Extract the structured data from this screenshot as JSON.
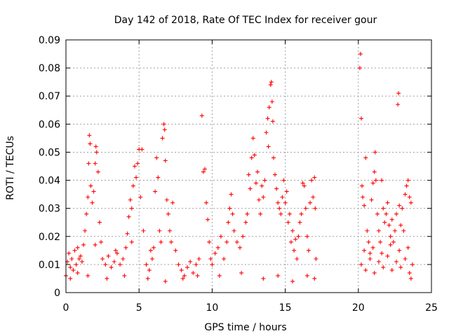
{
  "chart_data": {
    "type": "scatter",
    "title": "Day 142 of 2018, Rate Of TEC Index for receiver gour",
    "xlabel": "GPS time / hours",
    "ylabel": "ROTI / TECUs",
    "xlim": [
      0,
      25
    ],
    "ylim": [
      0,
      0.09
    ],
    "x_ticks": [
      0,
      5,
      10,
      15,
      20,
      25
    ],
    "x_tick_labels": [
      "0",
      "5",
      "10",
      "15",
      "20",
      "25"
    ],
    "y_ticks": [
      0,
      0.01,
      0.02,
      0.03,
      0.04,
      0.05,
      0.06,
      0.07,
      0.08,
      0.09
    ],
    "y_tick_labels": [
      "0",
      "0.01",
      "0.02",
      "0.03",
      "0.04",
      "0.05",
      "0.06",
      "0.07",
      "0.08",
      "0.09"
    ],
    "grid": true,
    "marker": "+",
    "color": "#ff0000",
    "series": [
      {
        "name": "ROTI",
        "points": [
          [
            0.0,
            0.006
          ],
          [
            0.1,
            0.011
          ],
          [
            0.2,
            0.014
          ],
          [
            0.3,
            0.009
          ],
          [
            0.4,
            0.012
          ],
          [
            0.5,
            0.008
          ],
          [
            0.6,
            0.015
          ],
          [
            0.7,
            0.01
          ],
          [
            0.8,
            0.007
          ],
          [
            0.9,
            0.012
          ],
          [
            1.0,
            0.013
          ],
          [
            1.1,
            0.011
          ],
          [
            1.2,
            0.017
          ],
          [
            1.3,
            0.022
          ],
          [
            1.4,
            0.028
          ],
          [
            1.5,
            0.034
          ],
          [
            1.55,
            0.046
          ],
          [
            1.6,
            0.056
          ],
          [
            1.65,
            0.053
          ],
          [
            1.7,
            0.038
          ],
          [
            1.8,
            0.032
          ],
          [
            1.9,
            0.036
          ],
          [
            2.0,
            0.046
          ],
          [
            2.05,
            0.052
          ],
          [
            2.1,
            0.05
          ],
          [
            2.2,
            0.043
          ],
          [
            2.3,
            0.025
          ],
          [
            2.4,
            0.018
          ],
          [
            2.5,
            0.012
          ],
          [
            2.7,
            0.01
          ],
          [
            2.9,
            0.013
          ],
          [
            3.1,
            0.009
          ],
          [
            3.3,
            0.011
          ],
          [
            3.5,
            0.014
          ],
          [
            3.7,
            0.01
          ],
          [
            3.9,
            0.012
          ],
          [
            4.1,
            0.016
          ],
          [
            4.2,
            0.021
          ],
          [
            4.3,
            0.027
          ],
          [
            4.4,
            0.033
          ],
          [
            4.5,
            0.03
          ],
          [
            4.6,
            0.038
          ],
          [
            4.7,
            0.045
          ],
          [
            4.8,
            0.041
          ],
          [
            4.9,
            0.046
          ],
          [
            5.0,
            0.051
          ],
          [
            5.1,
            0.034
          ],
          [
            5.2,
            0.051
          ],
          [
            5.3,
            0.022
          ],
          [
            5.5,
            0.01
          ],
          [
            5.7,
            0.008
          ],
          [
            5.9,
            0.012
          ],
          [
            6.0,
            0.016
          ],
          [
            6.1,
            0.036
          ],
          [
            6.2,
            0.048
          ],
          [
            6.3,
            0.041
          ],
          [
            6.4,
            0.022
          ],
          [
            6.5,
            0.018
          ],
          [
            6.6,
            0.055
          ],
          [
            6.7,
            0.06
          ],
          [
            6.75,
            0.058
          ],
          [
            6.8,
            0.047
          ],
          [
            6.9,
            0.033
          ],
          [
            7.0,
            0.028
          ],
          [
            7.1,
            0.022
          ],
          [
            7.2,
            0.018
          ],
          [
            7.3,
            0.032
          ],
          [
            7.5,
            0.015
          ],
          [
            7.7,
            0.01
          ],
          [
            7.9,
            0.008
          ],
          [
            8.1,
            0.006
          ],
          [
            8.3,
            0.009
          ],
          [
            8.5,
            0.011
          ],
          [
            8.7,
            0.007
          ],
          [
            8.9,
            0.01
          ],
          [
            9.1,
            0.012
          ],
          [
            9.3,
            0.063
          ],
          [
            9.4,
            0.043
          ],
          [
            9.5,
            0.044
          ],
          [
            9.6,
            0.032
          ],
          [
            9.7,
            0.026
          ],
          [
            9.8,
            0.018
          ],
          [
            9.9,
            0.012
          ],
          [
            10.0,
            0.01
          ],
          [
            10.2,
            0.014
          ],
          [
            10.4,
            0.016
          ],
          [
            10.6,
            0.02
          ],
          [
            10.8,
            0.012
          ],
          [
            11.0,
            0.018
          ],
          [
            11.1,
            0.025
          ],
          [
            11.2,
            0.03
          ],
          [
            11.3,
            0.035
          ],
          [
            11.4,
            0.028
          ],
          [
            11.5,
            0.022
          ],
          [
            11.7,
            0.018
          ],
          [
            11.9,
            0.016
          ],
          [
            12.1,
            0.02
          ],
          [
            12.3,
            0.025
          ],
          [
            12.4,
            0.028
          ],
          [
            12.5,
            0.042
          ],
          [
            12.6,
            0.037
          ],
          [
            12.7,
            0.048
          ],
          [
            12.8,
            0.055
          ],
          [
            12.9,
            0.049
          ],
          [
            13.0,
            0.039
          ],
          [
            13.1,
            0.043
          ],
          [
            13.2,
            0.033
          ],
          [
            13.3,
            0.028
          ],
          [
            13.4,
            0.038
          ],
          [
            13.5,
            0.034
          ],
          [
            13.6,
            0.04
          ],
          [
            13.7,
            0.057
          ],
          [
            13.8,
            0.062
          ],
          [
            13.85,
            0.052
          ],
          [
            13.9,
            0.066
          ],
          [
            14.0,
            0.074
          ],
          [
            14.05,
            0.075
          ],
          [
            14.1,
            0.068
          ],
          [
            14.15,
            0.061
          ],
          [
            14.2,
            0.048
          ],
          [
            14.3,
            0.042
          ],
          [
            14.4,
            0.037
          ],
          [
            14.5,
            0.032
          ],
          [
            14.6,
            0.03
          ],
          [
            14.7,
            0.028
          ],
          [
            14.8,
            0.034
          ],
          [
            14.9,
            0.04
          ],
          [
            15.0,
            0.032
          ],
          [
            15.1,
            0.036
          ],
          [
            15.2,
            0.025
          ],
          [
            15.3,
            0.028
          ],
          [
            15.4,
            0.018
          ],
          [
            15.5,
            0.022
          ],
          [
            15.6,
            0.015
          ],
          [
            15.7,
            0.019
          ],
          [
            15.8,
            0.012
          ],
          [
            15.9,
            0.02
          ],
          [
            16.0,
            0.025
          ],
          [
            16.1,
            0.028
          ],
          [
            16.2,
            0.039
          ],
          [
            16.3,
            0.038
          ],
          [
            16.4,
            0.03
          ],
          [
            16.5,
            0.02
          ],
          [
            16.6,
            0.015
          ],
          [
            16.7,
            0.032
          ],
          [
            16.8,
            0.04
          ],
          [
            16.9,
            0.034
          ],
          [
            17.0,
            0.041
          ],
          [
            17.05,
            0.03
          ],
          [
            17.1,
            0.012
          ],
          [
            20.1,
            0.08
          ],
          [
            20.15,
            0.085
          ],
          [
            20.2,
            0.062
          ],
          [
            20.25,
            0.038
          ],
          [
            20.3,
            0.034
          ],
          [
            20.4,
            0.031
          ],
          [
            20.5,
            0.048
          ],
          [
            20.6,
            0.022
          ],
          [
            20.7,
            0.018
          ],
          [
            20.8,
            0.014
          ],
          [
            20.9,
            0.033
          ],
          [
            21.0,
            0.039
          ],
          [
            21.1,
            0.043
          ],
          [
            21.15,
            0.05
          ],
          [
            21.2,
            0.04
          ],
          [
            21.3,
            0.028
          ],
          [
            21.4,
            0.022
          ],
          [
            21.5,
            0.018
          ],
          [
            21.6,
            0.04
          ],
          [
            21.7,
            0.03
          ],
          [
            21.8,
            0.025
          ],
          [
            21.9,
            0.028
          ],
          [
            22.0,
            0.032
          ],
          [
            22.1,
            0.024
          ],
          [
            22.2,
            0.02
          ],
          [
            22.3,
            0.026
          ],
          [
            22.4,
            0.018
          ],
          [
            22.5,
            0.022
          ],
          [
            22.6,
            0.028
          ],
          [
            22.7,
            0.067
          ],
          [
            22.75,
            0.071
          ],
          [
            22.8,
            0.031
          ],
          [
            22.9,
            0.024
          ],
          [
            23.0,
            0.03
          ],
          [
            23.1,
            0.022
          ],
          [
            23.2,
            0.035
          ],
          [
            23.3,
            0.038
          ],
          [
            23.4,
            0.04
          ],
          [
            23.5,
            0.034
          ],
          [
            23.6,
            0.032
          ],
          [
            20.2,
            0.01
          ],
          [
            20.5,
            0.008
          ],
          [
            20.8,
            0.012
          ],
          [
            21.1,
            0.007
          ],
          [
            21.4,
            0.011
          ],
          [
            21.7,
            0.009
          ],
          [
            22.0,
            0.013
          ],
          [
            22.3,
            0.008
          ],
          [
            22.6,
            0.011
          ],
          [
            22.9,
            0.009
          ],
          [
            23.2,
            0.012
          ],
          [
            23.5,
            0.007
          ],
          [
            23.7,
            0.01
          ],
          [
            20.4,
            0.015
          ],
          [
            21.0,
            0.016
          ],
          [
            21.6,
            0.014
          ],
          [
            22.2,
            0.017
          ],
          [
            22.8,
            0.015
          ],
          [
            23.4,
            0.016
          ],
          [
            23.6,
            0.005
          ],
          [
            0.3,
            0.005
          ],
          [
            1.5,
            0.006
          ],
          [
            2.8,
            0.005
          ],
          [
            4.0,
            0.006
          ],
          [
            5.6,
            0.005
          ],
          [
            6.8,
            0.004
          ],
          [
            8.0,
            0.005
          ],
          [
            9.0,
            0.006
          ],
          [
            10.5,
            0.006
          ],
          [
            12.0,
            0.007
          ],
          [
            13.5,
            0.005
          ],
          [
            14.5,
            0.006
          ],
          [
            15.5,
            0.004
          ],
          [
            16.5,
            0.006
          ],
          [
            17.0,
            0.005
          ],
          [
            0.8,
            0.016
          ],
          [
            2.0,
            0.017
          ],
          [
            3.4,
            0.015
          ],
          [
            4.5,
            0.018
          ],
          [
            5.8,
            0.015
          ]
        ]
      }
    ]
  }
}
